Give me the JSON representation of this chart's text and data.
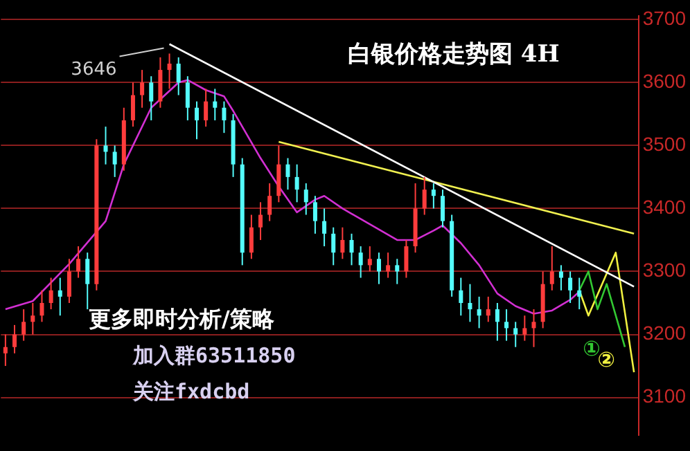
{
  "chart_data": {
    "type": "candlestick",
    "title": "白银价格走势图 4H",
    "categories": [
      null,
      null,
      null,
      null,
      null,
      null,
      null,
      null,
      null,
      null,
      null,
      null,
      null,
      null,
      null,
      null,
      null,
      null,
      null,
      null,
      null,
      null,
      null,
      null,
      null,
      null,
      null,
      null,
      null,
      null,
      null,
      null,
      null,
      null,
      null,
      null,
      null,
      null,
      null,
      null,
      null,
      null,
      null,
      null,
      null,
      null,
      null,
      null,
      null,
      null,
      null,
      null,
      null,
      null,
      null,
      null,
      null,
      null,
      null,
      null,
      null,
      null,
      null,
      null,
      null,
      null,
      null,
      null,
      null,
      null
    ],
    "ohlc": [
      [
        3170,
        3200,
        3150,
        3180
      ],
      [
        3180,
        3215,
        3170,
        3200
      ],
      [
        3200,
        3240,
        3190,
        3220
      ],
      [
        3220,
        3250,
        3200,
        3230
      ],
      [
        3230,
        3270,
        3220,
        3250
      ],
      [
        3250,
        3290,
        3240,
        3270
      ],
      [
        3270,
        3290,
        3230,
        3260
      ],
      [
        3260,
        3320,
        3250,
        3300
      ],
      [
        3300,
        3340,
        3290,
        3320
      ],
      [
        3320,
        3330,
        3240,
        3280
      ],
      [
        3280,
        3510,
        3270,
        3500
      ],
      [
        3500,
        3530,
        3470,
        3490
      ],
      [
        3490,
        3500,
        3450,
        3470
      ],
      [
        3470,
        3560,
        3460,
        3540
      ],
      [
        3540,
        3600,
        3530,
        3580
      ],
      [
        3580,
        3620,
        3560,
        3600
      ],
      [
        3600,
        3610,
        3540,
        3570
      ],
      [
        3570,
        3640,
        3560,
        3620
      ],
      [
        3620,
        3646,
        3590,
        3630
      ],
      [
        3630,
        3640,
        3580,
        3600
      ],
      [
        3600,
        3610,
        3540,
        3560
      ],
      [
        3560,
        3570,
        3510,
        3540
      ],
      [
        3540,
        3590,
        3530,
        3570
      ],
      [
        3570,
        3590,
        3540,
        3560
      ],
      [
        3560,
        3570,
        3520,
        3540
      ],
      [
        3540,
        3550,
        3450,
        3470
      ],
      [
        3470,
        3480,
        3310,
        3330
      ],
      [
        3330,
        3390,
        3320,
        3370
      ],
      [
        3370,
        3410,
        3350,
        3390
      ],
      [
        3390,
        3440,
        3380,
        3420
      ],
      [
        3420,
        3500,
        3410,
        3470
      ],
      [
        3470,
        3480,
        3430,
        3450
      ],
      [
        3450,
        3470,
        3410,
        3430
      ],
      [
        3430,
        3440,
        3390,
        3410
      ],
      [
        3410,
        3420,
        3360,
        3380
      ],
      [
        3380,
        3400,
        3340,
        3360
      ],
      [
        3360,
        3370,
        3310,
        3330
      ],
      [
        3330,
        3370,
        3320,
        3350
      ],
      [
        3350,
        3360,
        3310,
        3330
      ],
      [
        3330,
        3340,
        3290,
        3310
      ],
      [
        3310,
        3340,
        3300,
        3320
      ],
      [
        3320,
        3330,
        3280,
        3300
      ],
      [
        3300,
        3330,
        3290,
        3310
      ],
      [
        3310,
        3320,
        3280,
        3300
      ],
      [
        3300,
        3350,
        3290,
        3340
      ],
      [
        3340,
        3440,
        3330,
        3400
      ],
      [
        3400,
        3450,
        3390,
        3430
      ],
      [
        3430,
        3440,
        3400,
        3420
      ],
      [
        3420,
        3430,
        3370,
        3380
      ],
      [
        3380,
        3390,
        3260,
        3270
      ],
      [
        3270,
        3290,
        3230,
        3250
      ],
      [
        3250,
        3280,
        3220,
        3240
      ],
      [
        3240,
        3260,
        3210,
        3230
      ],
      [
        3230,
        3260,
        3220,
        3240
      ],
      [
        3240,
        3250,
        3190,
        3220
      ],
      [
        3220,
        3240,
        3190,
        3210
      ],
      [
        3210,
        3220,
        3180,
        3200
      ],
      [
        3200,
        3230,
        3190,
        3210
      ],
      [
        3210,
        3240,
        3180,
        3220
      ],
      [
        3220,
        3300,
        3210,
        3280
      ],
      [
        3280,
        3340,
        3270,
        3300
      ],
      [
        3300,
        3310,
        3270,
        3290
      ],
      [
        3290,
        3300,
        3250,
        3270
      ],
      [
        3270,
        3290,
        3240,
        3260
      ],
      null,
      null,
      null,
      null,
      null,
      null
    ],
    "colors": [
      "#ff3c3c",
      "#ff3c3c",
      "#ff3c3c",
      "#ff3c3c",
      "#ff3c3c",
      "#ff3c3c",
      "#54fcfc",
      "#ff3c3c",
      "#ff3c3c",
      "#54fcfc",
      "#ff3c3c",
      "#54fcfc",
      "#54fcfc",
      "#ff3c3c",
      "#ff3c3c",
      "#ff3c3c",
      "#54fcfc",
      "#ff3c3c",
      "#ff3c3c",
      "#54fcfc",
      "#54fcfc",
      "#54fcfc",
      "#ff3c3c",
      "#54fcfc",
      "#54fcfc",
      "#54fcfc",
      "#54fcfc",
      "#ff3c3c",
      "#ff3c3c",
      "#ff3c3c",
      "#ff3c3c",
      "#54fcfc",
      "#54fcfc",
      "#54fcfc",
      "#54fcfc",
      "#54fcfc",
      "#54fcfc",
      "#ff3c3c",
      "#54fcfc",
      "#54fcfc",
      "#ff3c3c",
      "#54fcfc",
      "#ff3c3c",
      "#54fcfc",
      "#ff3c3c",
      "#ff3c3c",
      "#ff3c3c",
      "#54fcfc",
      "#54fcfc",
      "#54fcfc",
      "#54fcfc",
      "#54fcfc",
      "#54fcfc",
      "#ff3c3c",
      "#54fcfc",
      "#54fcfc",
      "#54fcfc",
      "#ff3c3c",
      "#ff3c3c",
      "#ff3c3c",
      "#ff3c3c",
      "#54fcfc",
      "#54fcfc",
      "#54fcfc",
      null,
      null,
      null,
      null,
      null,
      null
    ],
    "series": [
      {
        "type": "line",
        "color": "#d22fd2",
        "values": [
          3240,
          null,
          null,
          3253,
          null,
          null,
          null,
          3312,
          null,
          null,
          null,
          3380,
          null,
          3470,
          null,
          null,
          3560,
          null,
          null,
          3600,
          3604,
          null,
          3588,
          null,
          3578,
          3555,
          3530,
          null,
          3480,
          null,
          3435,
          null,
          3394,
          null,
          3414,
          3420,
          null,
          3400,
          null,
          null,
          3375,
          null,
          null,
          3350,
          null,
          3350,
          null,
          3365,
          3373,
          null,
          3345,
          null,
          3310,
          null,
          3265,
          null,
          3245,
          null,
          3233,
          null,
          3238,
          null,
          3255,
          3268,
          null,
          null,
          null,
          null,
          null,
          null
        ]
      },
      {
        "type": "line",
        "color": "#ffffff",
        "values": [
          null,
          null,
          null,
          null,
          null,
          null,
          null,
          null,
          null,
          null,
          null,
          null,
          null,
          null,
          null,
          null,
          null,
          null,
          3661,
          null,
          null,
          null,
          null,
          null,
          null,
          null,
          null,
          null,
          null,
          null,
          null,
          null,
          null,
          null,
          null,
          null,
          null,
          null,
          null,
          null,
          null,
          null,
          null,
          null,
          null,
          null,
          null,
          null,
          null,
          null,
          null,
          null,
          null,
          null,
          null,
          null,
          null,
          null,
          null,
          null,
          null,
          null,
          null,
          null,
          null,
          null,
          null,
          null,
          null,
          3276
        ]
      },
      {
        "type": "line",
        "color": "#f0f050",
        "values": [
          null,
          null,
          null,
          null,
          null,
          null,
          null,
          null,
          null,
          null,
          null,
          null,
          null,
          null,
          null,
          null,
          null,
          null,
          null,
          null,
          null,
          null,
          null,
          null,
          null,
          null,
          null,
          null,
          null,
          null,
          3506,
          null,
          null,
          null,
          null,
          null,
          null,
          null,
          null,
          null,
          null,
          null,
          null,
          null,
          null,
          null,
          null,
          null,
          null,
          null,
          null,
          null,
          null,
          null,
          null,
          null,
          null,
          null,
          null,
          null,
          null,
          null,
          null,
          null,
          null,
          null,
          null,
          null,
          null,
          3360
        ]
      },
      {
        "type": "line",
        "name": "①",
        "color": "#32c832",
        "values": [
          null,
          null,
          null,
          null,
          null,
          null,
          null,
          null,
          null,
          null,
          null,
          null,
          null,
          null,
          null,
          null,
          null,
          null,
          null,
          null,
          null,
          null,
          null,
          null,
          null,
          null,
          null,
          null,
          null,
          null,
          null,
          null,
          null,
          null,
          null,
          null,
          null,
          null,
          null,
          null,
          null,
          null,
          null,
          null,
          null,
          null,
          null,
          null,
          null,
          null,
          null,
          null,
          null,
          null,
          null,
          null,
          null,
          null,
          null,
          null,
          null,
          null,
          null,
          3270,
          3300,
          3240,
          3280,
          null,
          3180,
          null
        ]
      },
      {
        "type": "line",
        "name": "②",
        "color": "#f0f040",
        "values": [
          null,
          null,
          null,
          null,
          null,
          null,
          null,
          null,
          null,
          null,
          null,
          null,
          null,
          null,
          null,
          null,
          null,
          null,
          null,
          null,
          null,
          null,
          null,
          null,
          null,
          null,
          null,
          null,
          null,
          null,
          null,
          null,
          null,
          null,
          null,
          null,
          null,
          null,
          null,
          null,
          null,
          null,
          null,
          null,
          null,
          null,
          null,
          null,
          null,
          null,
          null,
          null,
          null,
          null,
          null,
          null,
          null,
          null,
          null,
          null,
          null,
          null,
          null,
          3270,
          3230,
          null,
          null,
          3330,
          null,
          3140
        ]
      }
    ],
    "ylim": [
      3040,
      3706
    ],
    "yticks": [
      3100,
      3200,
      3300,
      3400,
      3500,
      3600,
      3700
    ],
    "grid": "y",
    "legend": false,
    "marker": "none",
    "tick_labels": "y",
    "annotations": [
      "3646",
      "更多即时分析/策略",
      "加入群63511850",
      "关注fxdcbd"
    ]
  }
}
